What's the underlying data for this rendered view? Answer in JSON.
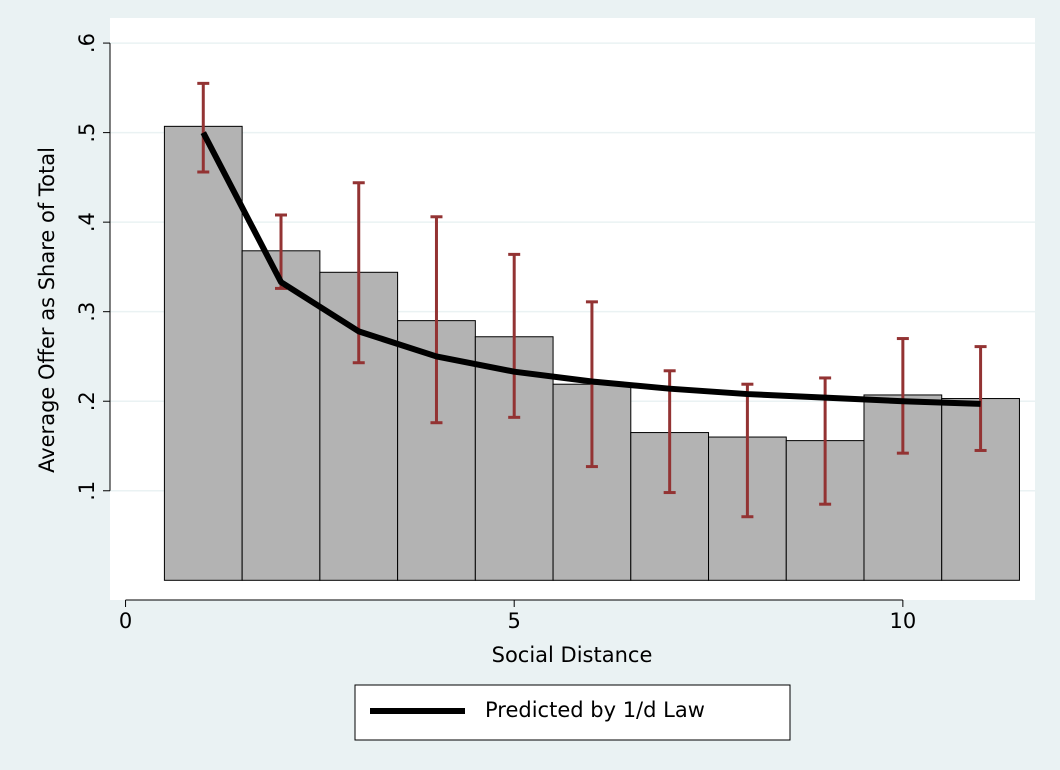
{
  "chart_data": {
    "type": "bar",
    "x": [
      1,
      2,
      3,
      4,
      5,
      6,
      7,
      8,
      9,
      10,
      11
    ],
    "values": [
      0.507,
      0.368,
      0.344,
      0.29,
      0.272,
      0.219,
      0.165,
      0.16,
      0.156,
      0.207,
      0.203
    ],
    "error_low": [
      0.456,
      0.326,
      0.243,
      0.176,
      0.182,
      0.127,
      0.098,
      0.071,
      0.085,
      0.142,
      0.145
    ],
    "error_high": [
      0.555,
      0.408,
      0.444,
      0.406,
      0.364,
      0.311,
      0.234,
      0.219,
      0.226,
      0.27,
      0.261
    ],
    "color": "#b3b3b3",
    "error_color": "#933333",
    "line": {
      "name": "Predicted by 1/d Law",
      "color": "#000000",
      "values": [
        0.5,
        0.333,
        0.278,
        0.25,
        0.233,
        0.222,
        0.214,
        0.208,
        0.204,
        0.2,
        0.197
      ]
    },
    "xlabel": "Social Distance",
    "ylabel": "Average Offer as Share of Total",
    "xlim": [
      -0.2,
      11.7
    ],
    "ylim": [
      -0.022,
      0.628
    ],
    "xticks": [
      0,
      5,
      10
    ],
    "yticks": [
      {
        "value": 0.1,
        "label": ".1"
      },
      {
        "value": 0.2,
        "label": ".2"
      },
      {
        "value": 0.3,
        "label": ".3"
      },
      {
        "value": 0.4,
        "label": ".4"
      },
      {
        "value": 0.5,
        "label": ".5"
      },
      {
        "value": 0.6,
        "label": ".6"
      }
    ],
    "grid": true
  }
}
